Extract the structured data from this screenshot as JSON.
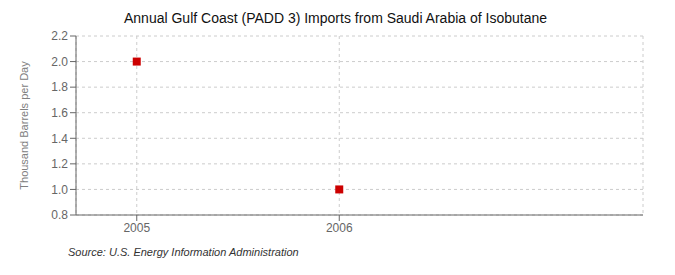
{
  "chart_data": {
    "type": "scatter",
    "title": "Annual Gulf Coast (PADD 3) Imports from Saudi Arabia of Isobutane",
    "ylabel": "Thousand Barrels per Day",
    "annotations": [
      "Source: U.S. Energy Information Administration"
    ],
    "x": [
      2005,
      2006
    ],
    "values": [
      2.0,
      1.0
    ],
    "color": "#cc0000",
    "marker": "square",
    "xlim": [
      2004.7,
      2007.5
    ],
    "xticks": [
      2005,
      2006
    ],
    "ylim": [
      0.8,
      2.2
    ],
    "yticks": [
      0.8,
      {
        "value": 1.0,
        "label": "1.0"
      },
      1.2,
      1.4,
      1.6,
      1.8,
      {
        "value": 2.0,
        "label": "2.0"
      },
      2.2
    ],
    "grid": true
  }
}
